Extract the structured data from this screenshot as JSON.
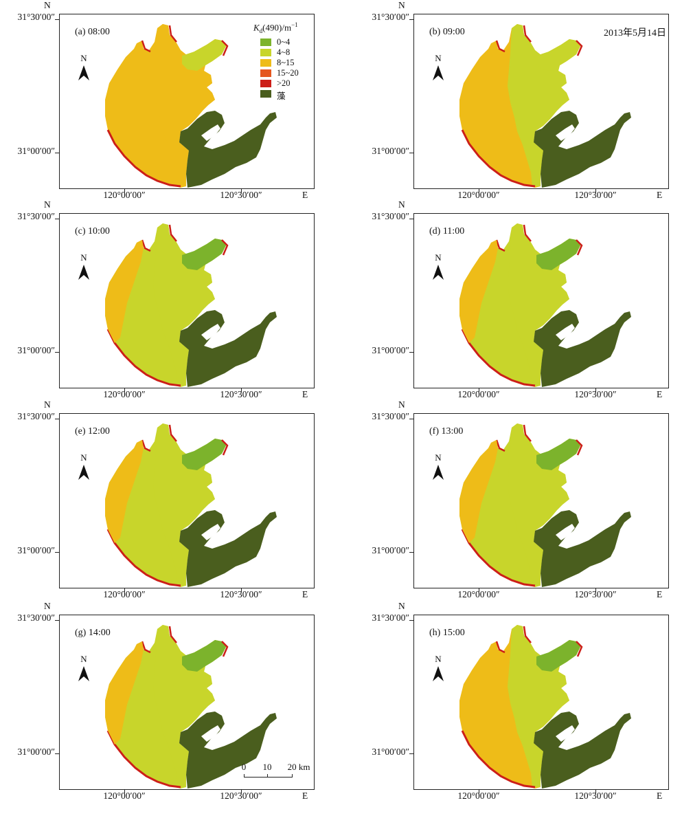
{
  "figure": {
    "date": "2013年5月14日",
    "legend": {
      "title_symbol": "K",
      "title_sub": "d",
      "title_rest": "(490)/m",
      "title_sup": "−1",
      "items": [
        {
          "label": "0~4",
          "color": "#7cb32c"
        },
        {
          "label": "4~8",
          "color": "#c8d52b"
        },
        {
          "label": "8~15",
          "color": "#eebc18"
        },
        {
          "label": "15~20",
          "color": "#e5561f"
        },
        {
          "label": ">20",
          "color": "#cc1f18"
        },
        {
          "label": "藻",
          "color": "#4a5e1e"
        }
      ]
    },
    "axes": {
      "north": "N",
      "east": "E",
      "lat_top": "31°30′00″",
      "lat_bottom": "31°00′00″",
      "lon_left": "120°00′00″",
      "lon_right": "120°30′00″"
    },
    "compass_label": "N",
    "scale_bar": {
      "labels": [
        "0",
        "10",
        "20 km"
      ]
    },
    "panels": [
      {
        "label": "(a) 08:00",
        "level": 0
      },
      {
        "label": "(b) 09:00",
        "level": 1
      },
      {
        "label": "(c) 10:00",
        "level": 2
      },
      {
        "label": "(d) 11:00",
        "level": 3
      },
      {
        "label": "(e) 12:00",
        "level": 3
      },
      {
        "label": "(f) 13:00",
        "level": 4
      },
      {
        "label": "(g) 14:00",
        "level": 4
      },
      {
        "label": "(h) 15:00",
        "level": 2
      }
    ],
    "colors": {
      "class_0_4": "#7cb32c",
      "class_4_8": "#c8d52b",
      "class_8_15": "#eebc18",
      "class_15_20": "#e5561f",
      "class_gt20": "#cc1f18",
      "algae": "#4a5e1e"
    }
  }
}
